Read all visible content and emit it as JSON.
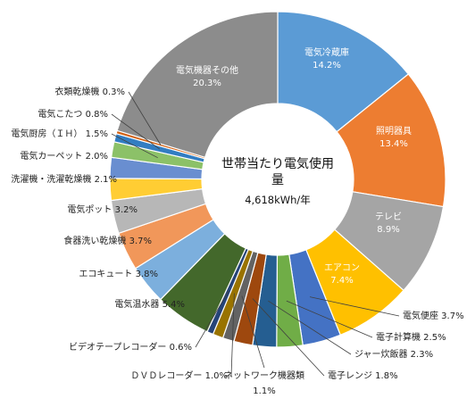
{
  "chart_data": {
    "type": "pie",
    "style": "donut",
    "title_lines": [
      "世帯当たり電気使用",
      "量"
    ],
    "total": "4,618kWh/年",
    "slices": [
      {
        "name": "電気冷蔵庫",
        "value": 14.2,
        "label": "14.2%",
        "color": "#5b9bd5"
      },
      {
        "name": "照明器具",
        "value": 13.4,
        "label": "13.4%",
        "color": "#ed7d31"
      },
      {
        "name": "テレビ",
        "value": 8.9,
        "label": "8.9%",
        "color": "#a5a5a5"
      },
      {
        "name": "エアコン",
        "value": 7.4,
        "label": "7.4%",
        "color": "#ffc000"
      },
      {
        "name": "電気便座",
        "value": 3.7,
        "label": "3.7%",
        "color": "#4472c4"
      },
      {
        "name": "電子計算機",
        "value": 2.5,
        "label": "2.5%",
        "color": "#70ad47"
      },
      {
        "name": "ジャー炊飯器",
        "value": 2.3,
        "label": "2.3%",
        "color": "#255e91"
      },
      {
        "name": "電子レンジ",
        "value": 1.8,
        "label": "1.8%",
        "color": "#9e480e"
      },
      {
        "name": "ネットワーク機器類",
        "value": 1.1,
        "label": "1.1%",
        "color": "#636363"
      },
      {
        "name": "ＤＶＤレコーダー",
        "value": 1.0,
        "label": "1.0%",
        "color": "#997300"
      },
      {
        "name": "ビデオテープレコーダー",
        "value": 0.6,
        "label": "0.6%",
        "color": "#264478"
      },
      {
        "name": "電気温水器",
        "value": 5.4,
        "label": "5.4%",
        "color": "#43682b"
      },
      {
        "name": "エコキュート",
        "value": 3.8,
        "label": "3.8%",
        "color": "#7cafdd"
      },
      {
        "name": "食器洗い乾燥機",
        "value": 3.7,
        "label": "3.7%",
        "color": "#f1975a"
      },
      {
        "name": "電気ポット",
        "value": 3.2,
        "label": "3.2%",
        "color": "#b7b7b7"
      },
      {
        "name": "洗濯機・洗濯乾燥機",
        "value": 2.1,
        "label": "2.1%",
        "color": "#ffcd33"
      },
      {
        "name": "電気カーペット",
        "value": 2.0,
        "label": "2.0%",
        "color": "#698ed0"
      },
      {
        "name": "電気厨房（ＩＨ）",
        "value": 1.5,
        "label": "1.5%",
        "color": "#8cc168"
      },
      {
        "name": "電気こたつ",
        "value": 0.8,
        "label": "0.8%",
        "color": "#327dc2"
      },
      {
        "name": "衣類乾燥機",
        "value": 0.3,
        "label": "0.3%",
        "color": "#d26012"
      },
      {
        "name": "電気機器その他",
        "value": 20.3,
        "label": "20.3%",
        "color": "#8c8c8c"
      }
    ]
  }
}
